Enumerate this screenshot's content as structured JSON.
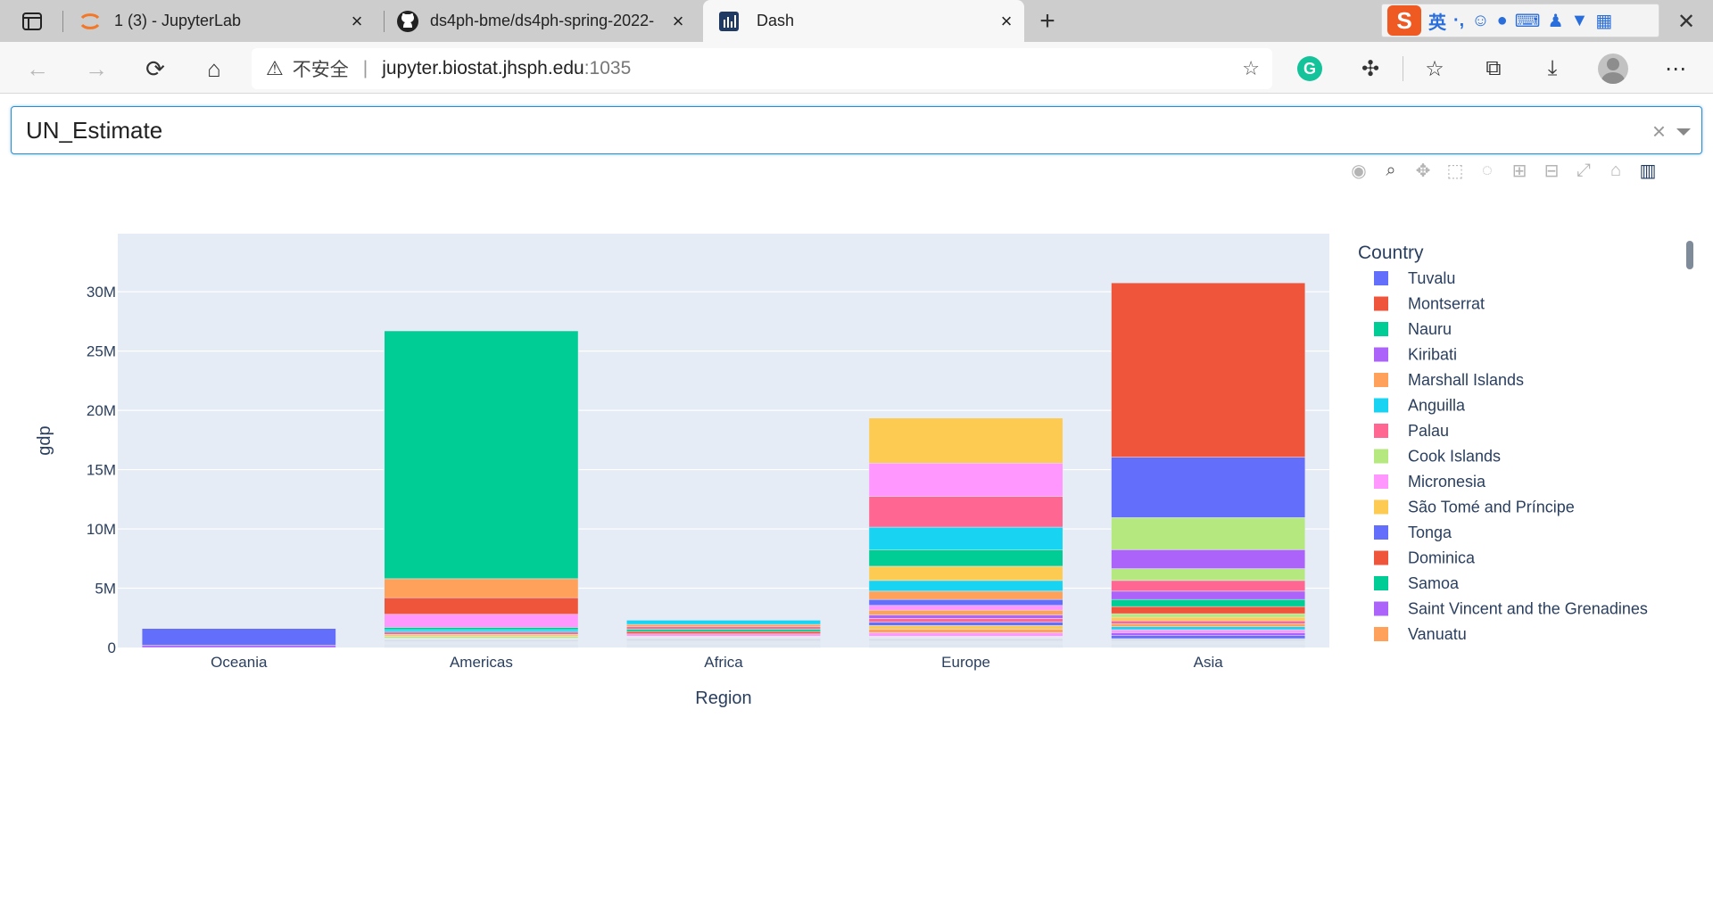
{
  "browser": {
    "tabs": [
      {
        "title": "1 (3) - JupyterLab",
        "icon": "jupyter-icon"
      },
      {
        "title": "ds4ph-bme/ds4ph-spring-2022-",
        "icon": "github-icon"
      },
      {
        "title": "Dash",
        "icon": "dash-icon"
      }
    ],
    "address": {
      "security_label": "不安全",
      "host": "jupyter.biostat.jhsph.edu",
      "port": ":1035"
    },
    "ime": {
      "lang": "英"
    }
  },
  "dropdown": {
    "value": "UN_Estimate"
  },
  "chart_data": {
    "type": "bar",
    "barmode": "stack",
    "xlabel": "Region",
    "ylabel": "gdp",
    "categories": [
      "Oceania",
      "Americas",
      "Africa",
      "Europe",
      "Asia"
    ],
    "y_ticks": [
      {
        "v": 0,
        "label": "0"
      },
      {
        "v": 5000000,
        "label": "5M"
      },
      {
        "v": 10000000,
        "label": "10M"
      },
      {
        "v": 15000000,
        "label": "15M"
      },
      {
        "v": 20000000,
        "label": "20M"
      },
      {
        "v": 25000000,
        "label": "25M"
      },
      {
        "v": 30000000,
        "label": "30M"
      }
    ],
    "ylim": [
      0,
      34900000
    ],
    "legend_title": "Country",
    "legend": [
      {
        "name": "Tuvalu",
        "color": "#636efa"
      },
      {
        "name": "Montserrat",
        "color": "#ef553b"
      },
      {
        "name": "Nauru",
        "color": "#00cc96"
      },
      {
        "name": "Kiribati",
        "color": "#ab63fa"
      },
      {
        "name": "Marshall Islands",
        "color": "#ffa15a"
      },
      {
        "name": "Anguilla",
        "color": "#19d3f3"
      },
      {
        "name": "Palau",
        "color": "#ff6692"
      },
      {
        "name": "Cook Islands",
        "color": "#b6e880"
      },
      {
        "name": "Micronesia",
        "color": "#ff97ff"
      },
      {
        "name": "São Tomé and Príncipe",
        "color": "#fecb52"
      },
      {
        "name": "Tonga",
        "color": "#636efa"
      },
      {
        "name": "Dominica",
        "color": "#ef553b"
      },
      {
        "name": "Samoa",
        "color": "#00cc96"
      },
      {
        "name": "Saint Vincent and the Grenadines",
        "color": "#ab63fa"
      },
      {
        "name": "Vanuatu",
        "color": "#ffa15a"
      }
    ],
    "stacks": [
      {
        "region": "Oceania",
        "segments": [
          {
            "v": 200000,
            "color": "#ab63fa"
          },
          {
            "v": 1400000,
            "color": "#636efa"
          }
        ]
      },
      {
        "region": "Americas",
        "segments": [
          {
            "v": 300000,
            "color": "#dfe6f0"
          },
          {
            "v": 200000,
            "color": "#e2e8f0"
          },
          {
            "v": 150000,
            "color": "#d7dde8"
          },
          {
            "v": 150000,
            "color": "#e5e9f0"
          },
          {
            "v": 150000,
            "color": "#b6e880"
          },
          {
            "v": 150000,
            "color": "#fecb52"
          },
          {
            "v": 200000,
            "color": "#ff6692"
          },
          {
            "v": 200000,
            "color": "#19d3f3"
          },
          {
            "v": 200000,
            "color": "#00cc96"
          },
          {
            "v": 1100000,
            "color": "#ff97ff"
          },
          {
            "v": 1400000,
            "color": "#ef553b"
          },
          {
            "v": 1600000,
            "color": "#ffa15a"
          },
          {
            "v": 20900000,
            "color": "#00cc96"
          }
        ]
      },
      {
        "region": "Africa",
        "segments": [
          {
            "v": 300000,
            "color": "#dfe6f0"
          },
          {
            "v": 250000,
            "color": "#e2e8f0"
          },
          {
            "v": 200000,
            "color": "#d7dde8"
          },
          {
            "v": 200000,
            "color": "#e5e9f0"
          },
          {
            "v": 200000,
            "color": "#ff97ff"
          },
          {
            "v": 200000,
            "color": "#ef553b"
          },
          {
            "v": 200000,
            "color": "#00cc96"
          },
          {
            "v": 200000,
            "color": "#ff6692"
          },
          {
            "v": 200000,
            "color": "#ffa15a"
          },
          {
            "v": 350000,
            "color": "#19d3f3"
          }
        ]
      },
      {
        "region": "Europe",
        "segments": [
          {
            "v": 300000,
            "color": "#dfe6f0"
          },
          {
            "v": 250000,
            "color": "#e2e8f0"
          },
          {
            "v": 200000,
            "color": "#d7dde8"
          },
          {
            "v": 200000,
            "color": "#e5e9f0"
          },
          {
            "v": 300000,
            "color": "#ff97ff"
          },
          {
            "v": 300000,
            "color": "#ffa15a"
          },
          {
            "v": 300000,
            "color": "#fecb52"
          },
          {
            "v": 300000,
            "color": "#636efa"
          },
          {
            "v": 300000,
            "color": "#ff6692"
          },
          {
            "v": 300000,
            "color": "#ab63fa"
          },
          {
            "v": 400000,
            "color": "#ffa15a"
          },
          {
            "v": 400000,
            "color": "#ff97ff"
          },
          {
            "v": 500000,
            "color": "#636efa"
          },
          {
            "v": 700000,
            "color": "#ffa15a"
          },
          {
            "v": 900000,
            "color": "#19d3f3"
          },
          {
            "v": 1200000,
            "color": "#fecb52"
          },
          {
            "v": 1400000,
            "color": "#00cc96"
          },
          {
            "v": 1900000,
            "color": "#19d3f3"
          },
          {
            "v": 2600000,
            "color": "#ff6692"
          },
          {
            "v": 2800000,
            "color": "#ff97ff"
          },
          {
            "v": 3800000,
            "color": "#fecb52"
          }
        ]
      },
      {
        "region": "Asia",
        "segments": [
          {
            "v": 300000,
            "color": "#dfe6f0"
          },
          {
            "v": 250000,
            "color": "#e2e8f0"
          },
          {
            "v": 200000,
            "color": "#d7dde8"
          },
          {
            "v": 250000,
            "color": "#636efa"
          },
          {
            "v": 250000,
            "color": "#ab63fa"
          },
          {
            "v": 250000,
            "color": "#ff97ff"
          },
          {
            "v": 250000,
            "color": "#19d3f3"
          },
          {
            "v": 250000,
            "color": "#ffa15a"
          },
          {
            "v": 250000,
            "color": "#ff6692"
          },
          {
            "v": 300000,
            "color": "#fecb52"
          },
          {
            "v": 300000,
            "color": "#b6e880"
          },
          {
            "v": 600000,
            "color": "#ef553b"
          },
          {
            "v": 600000,
            "color": "#00cc96"
          },
          {
            "v": 700000,
            "color": "#ab63fa"
          },
          {
            "v": 900000,
            "color": "#ff6692"
          },
          {
            "v": 1000000,
            "color": "#b6e880"
          },
          {
            "v": 1600000,
            "color": "#ab63fa"
          },
          {
            "v": 2700000,
            "color": "#b6e880"
          },
          {
            "v": 5100000,
            "color": "#636efa"
          },
          {
            "v": 14700000,
            "color": "#ef553b"
          }
        ]
      }
    ]
  }
}
